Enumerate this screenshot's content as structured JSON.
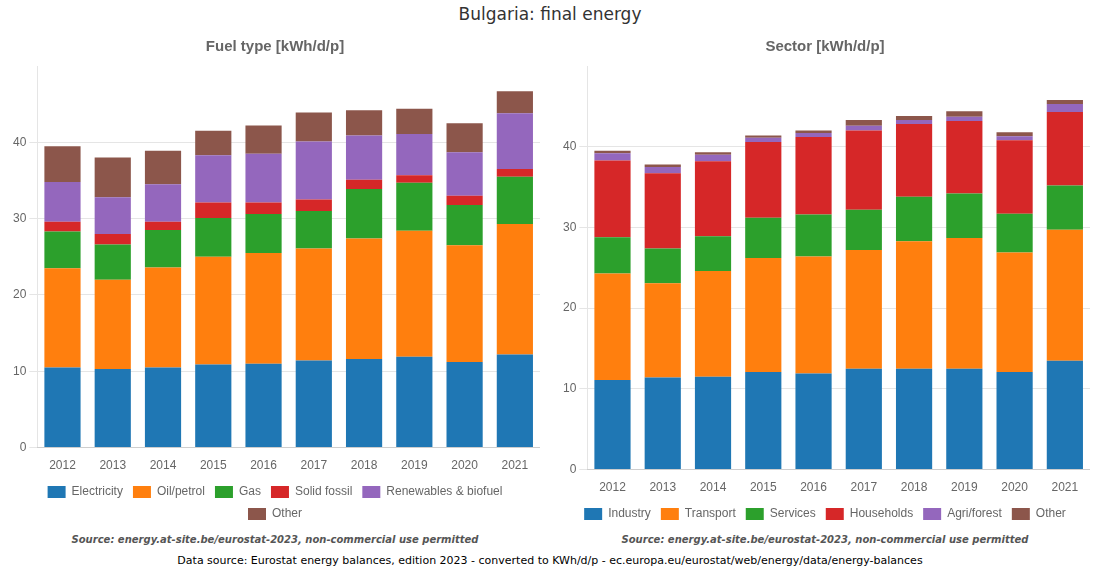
{
  "title": "Bulgaria: final energy",
  "annotations": [
    "Data source: Eurostat energy balances, edition 2023 - converted to KWh/d/p - ec.europa.eu/eurostat/web/energy/data/energy-balances"
  ],
  "chart_data": [
    {
      "type": "bar",
      "title": "Fuel type [kWh/d/p]",
      "categories": [
        2012,
        2013,
        2014,
        2015,
        2016,
        2017,
        2018,
        2019,
        2020,
        2021
      ],
      "series": [
        {
          "name": "Electricity",
          "color": "#1f77b4",
          "values": [
            10.5,
            10.3,
            10.5,
            10.9,
            11.0,
            11.4,
            11.6,
            11.9,
            11.2,
            12.2
          ]
        },
        {
          "name": "Oil/petrol",
          "color": "#ff7f0e",
          "values": [
            13.0,
            11.7,
            13.1,
            14.1,
            14.5,
            14.7,
            15.8,
            16.5,
            15.3,
            17.1
          ]
        },
        {
          "name": "Gas",
          "color": "#2ca02c",
          "values": [
            4.8,
            4.6,
            4.9,
            5.1,
            5.1,
            4.9,
            6.5,
            6.3,
            5.3,
            6.2
          ]
        },
        {
          "name": "Solid fossil",
          "color": "#d62728",
          "values": [
            1.3,
            1.4,
            1.1,
            2.0,
            1.5,
            1.5,
            1.2,
            1.0,
            1.2,
            1.0
          ]
        },
        {
          "name": "Renewables & biofuel",
          "color": "#9467bd",
          "values": [
            5.2,
            4.8,
            4.9,
            6.2,
            6.4,
            7.6,
            5.8,
            5.4,
            5.7,
            7.3
          ]
        },
        {
          "name": "Other",
          "color": "#8c564b",
          "values": [
            4.7,
            5.2,
            4.4,
            3.2,
            3.7,
            3.8,
            3.3,
            3.3,
            3.8,
            2.9
          ]
        }
      ],
      "stacked": true,
      "ylim": [
        0,
        50
      ],
      "yticks": [
        0,
        10,
        20,
        30,
        40
      ],
      "grid": true,
      "legend": "bottom",
      "annotations": [
        "Source: energy.at-site.be/eurostat-2023, non-commercial use permitted"
      ]
    },
    {
      "type": "bar",
      "title": "Sector [kWh/d/p]",
      "categories": [
        2012,
        2013,
        2014,
        2015,
        2016,
        2017,
        2018,
        2019,
        2020,
        2021
      ],
      "series": [
        {
          "name": "Industry",
          "color": "#1f77b4",
          "values": [
            11.1,
            11.4,
            11.5,
            12.1,
            11.9,
            12.5,
            12.5,
            12.5,
            12.1,
            13.5
          ]
        },
        {
          "name": "Transport",
          "color": "#ff7f0e",
          "values": [
            13.2,
            11.7,
            13.1,
            14.1,
            14.5,
            14.7,
            15.8,
            16.2,
            14.8,
            16.2
          ]
        },
        {
          "name": "Services",
          "color": "#2ca02c",
          "values": [
            4.5,
            4.3,
            4.3,
            5.0,
            5.2,
            5.0,
            5.5,
            5.5,
            4.8,
            5.5
          ]
        },
        {
          "name": "Households",
          "color": "#d62728",
          "values": [
            9.5,
            9.3,
            9.3,
            9.4,
            9.6,
            9.8,
            9.0,
            9.0,
            9.1,
            9.1
          ]
        },
        {
          "name": "Agri/forest",
          "color": "#9467bd",
          "values": [
            0.9,
            0.8,
            0.8,
            0.5,
            0.5,
            0.6,
            0.5,
            0.5,
            0.5,
            1.0
          ]
        },
        {
          "name": "Other",
          "color": "#8c564b",
          "values": [
            0.3,
            0.3,
            0.3,
            0.3,
            0.3,
            0.7,
            0.5,
            0.7,
            0.5,
            0.5
          ]
        }
      ],
      "stacked": true,
      "ylim": [
        0,
        50
      ],
      "yticks": [
        0,
        10,
        20,
        30,
        40
      ],
      "grid": true,
      "legend": "bottom",
      "annotations": [
        "Source: energy.at-site.be/eurostat-2023, non-commercial use permitted"
      ]
    }
  ]
}
